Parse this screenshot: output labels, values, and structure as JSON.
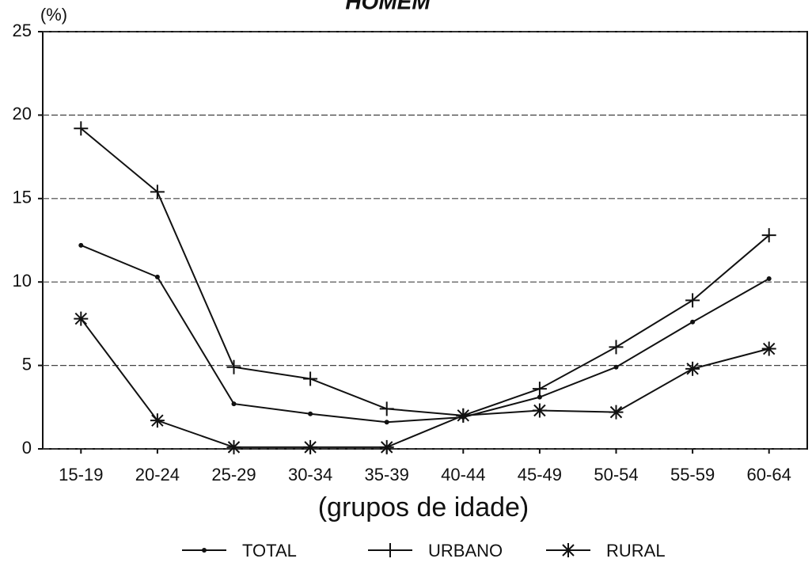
{
  "chart_data": {
    "type": "line",
    "title": "HOMEM",
    "y_label": "(%)",
    "x_label": "(grupos de idade)",
    "categories": [
      "15-19",
      "20-24",
      "25-29",
      "30-34",
      "35-39",
      "40-44",
      "45-49",
      "50-54",
      "55-59",
      "60-64"
    ],
    "series": [
      {
        "name": "TOTAL",
        "color": "#111111",
        "marker": "dot",
        "values": [
          12.2,
          10.3,
          2.7,
          2.1,
          1.6,
          1.9,
          3.1,
          4.9,
          7.6,
          10.2
        ]
      },
      {
        "name": "URBANO",
        "color": "#111111",
        "marker": "plus",
        "values": [
          19.2,
          15.4,
          4.9,
          4.2,
          2.4,
          2.0,
          3.6,
          6.1,
          8.9,
          12.8
        ]
      },
      {
        "name": "RURAL",
        "color": "#111111",
        "marker": "star",
        "values": [
          7.8,
          1.7,
          0.1,
          0.1,
          0.1,
          2.0,
          2.3,
          2.2,
          4.8,
          6.0
        ]
      }
    ],
    "ylim": [
      0,
      25
    ],
    "yticks": [
      0,
      5,
      10,
      15,
      20,
      25
    ],
    "grid": true,
    "legend": "bottom"
  }
}
